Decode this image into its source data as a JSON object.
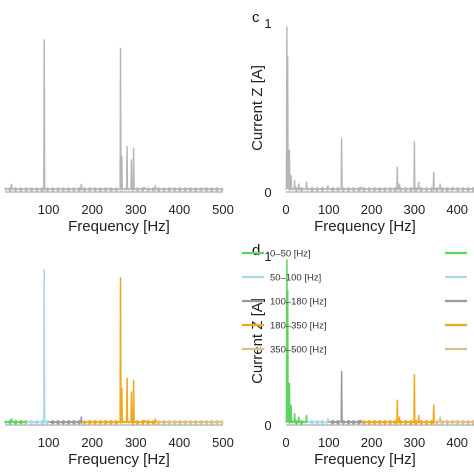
{
  "chart_data": [
    {
      "id": "top-left",
      "panel_label": "",
      "type": "line",
      "xlabel": "Frequency [Hz]",
      "ylabel": "",
      "xlim": [
        0,
        500
      ],
      "x_ticks": [
        100,
        200,
        300,
        400,
        500
      ],
      "ylim": [
        0,
        1
      ],
      "y_ticks": [],
      "color_mode": "single",
      "series_color": "#b5b5b5",
      "peaks": [
        [
          10,
          0.02
        ],
        [
          15,
          0.05
        ],
        [
          90,
          0.93
        ],
        [
          175,
          0.05
        ],
        [
          265,
          0.88
        ],
        [
          268,
          0.22
        ],
        [
          280,
          0.28
        ],
        [
          290,
          0.2
        ],
        [
          295,
          0.27
        ],
        [
          320,
          0.03
        ],
        [
          345,
          0.04
        ],
        [
          420,
          0.02
        ],
        [
          470,
          0.02
        ]
      ],
      "baseline": 0.02
    },
    {
      "id": "top-right",
      "panel_label": "c",
      "type": "line",
      "xlabel": "Frequency [Hz]",
      "ylabel": "Current Z [A]",
      "xlim": [
        0,
        500
      ],
      "x_ticks": [
        0,
        100,
        200,
        300,
        400
      ],
      "ylim": [
        0,
        1
      ],
      "y_ticks": [
        0,
        1
      ],
      "color_mode": "single",
      "series_color": "#b5b5b5",
      "peaks": [
        [
          2,
          0.98
        ],
        [
          4,
          0.8
        ],
        [
          8,
          0.25
        ],
        [
          12,
          0.1
        ],
        [
          20,
          0.07
        ],
        [
          30,
          0.05
        ],
        [
          48,
          0.06
        ],
        [
          98,
          0.04
        ],
        [
          130,
          0.32
        ],
        [
          175,
          0.03
        ],
        [
          260,
          0.15
        ],
        [
          265,
          0.05
        ],
        [
          300,
          0.3
        ],
        [
          310,
          0.06
        ],
        [
          345,
          0.12
        ],
        [
          360,
          0.05
        ],
        [
          390,
          0.03
        ]
      ],
      "baseline": 0.02
    },
    {
      "id": "bottom-left",
      "panel_label": "",
      "type": "line",
      "xlabel": "Frequency [Hz]",
      "ylabel": "",
      "xlim": [
        0,
        500
      ],
      "x_ticks": [
        100,
        200,
        300,
        400,
        500
      ],
      "ylim": [
        0,
        1
      ],
      "y_ticks": [],
      "color_mode": "bands",
      "peaks": [
        [
          10,
          0.02
        ],
        [
          15,
          0.04
        ],
        [
          90,
          0.93
        ],
        [
          175,
          0.05
        ],
        [
          265,
          0.88
        ],
        [
          268,
          0.22
        ],
        [
          280,
          0.28
        ],
        [
          290,
          0.2
        ],
        [
          295,
          0.27
        ],
        [
          320,
          0.03
        ],
        [
          345,
          0.04
        ],
        [
          420,
          0.02
        ],
        [
          470,
          0.02
        ]
      ],
      "baseline": 0.02
    },
    {
      "id": "bottom-right",
      "panel_label": "d",
      "type": "line",
      "xlabel": "Frequency [Hz]",
      "ylabel": "Current Z [A]",
      "xlim": [
        0,
        500
      ],
      "x_ticks": [
        0,
        100,
        200,
        300,
        400
      ],
      "ylim": [
        0,
        1
      ],
      "y_ticks": [
        0,
        1
      ],
      "color_mode": "bands",
      "peaks": [
        [
          2,
          0.98
        ],
        [
          4,
          0.8
        ],
        [
          8,
          0.25
        ],
        [
          12,
          0.12
        ],
        [
          20,
          0.07
        ],
        [
          30,
          0.05
        ],
        [
          48,
          0.06
        ],
        [
          98,
          0.04
        ],
        [
          130,
          0.32
        ],
        [
          175,
          0.03
        ],
        [
          260,
          0.15
        ],
        [
          265,
          0.05
        ],
        [
          300,
          0.3
        ],
        [
          310,
          0.06
        ],
        [
          345,
          0.12
        ],
        [
          360,
          0.05
        ],
        [
          390,
          0.03
        ]
      ],
      "baseline": 0.02
    }
  ],
  "bands": [
    {
      "label": "0–50 [Hz]",
      "from": 0,
      "to": 50,
      "color": "#5fd35f"
    },
    {
      "label": "50–100 [Hz]",
      "from": 50,
      "to": 100,
      "color": "#a8d8ea"
    },
    {
      "label": "100–180 [Hz]",
      "from": 100,
      "to": 180,
      "color": "#9a9a9a"
    },
    {
      "label": "180–350 [Hz]",
      "from": 180,
      "to": 350,
      "color": "#f0a81e"
    },
    {
      "label": "350–500 [Hz]",
      "from": 350,
      "to": 500,
      "color": "#dcc08a"
    }
  ],
  "legend_placement": "right of bottom-left panel"
}
